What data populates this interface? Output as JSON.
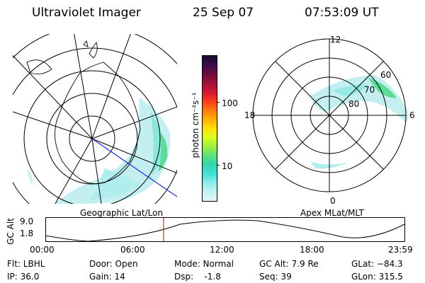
{
  "header": {
    "title": "Ultraviolet Imager",
    "date": "25 Sep 07",
    "time": "07:53:09 UT"
  },
  "colorbar": {
    "unit_label": "photon cm⁻²s⁻¹",
    "tick_labels": [
      "100",
      "10"
    ],
    "colors": [
      "#1b0a2e",
      "#3a0a4e",
      "#6a0a3e",
      "#a0103a",
      "#d01830",
      "#ff3a20",
      "#ff7a10",
      "#ffb000",
      "#ffe000",
      "#d8ff20",
      "#9cf040",
      "#5ce07a",
      "#30d8b0",
      "#40e0d8",
      "#90ecec",
      "#c4f2f2",
      "#e6f6f6"
    ]
  },
  "left_panel": {
    "caption": "Geographic Lat/Lon"
  },
  "right_panel": {
    "caption": "Apex MLat/MLT",
    "mlt_labels": {
      "top": "12",
      "bottom": "0",
      "left": "18",
      "right": "6"
    },
    "mlat_labels": [
      "60",
      "70",
      "80"
    ]
  },
  "altitude_plot": {
    "ylabel": "GC Alt",
    "y_ticks": [
      "9.0",
      "1.8"
    ],
    "x_ticks": [
      "00:00",
      "06:00",
      "12:00",
      "18:00",
      "23:59"
    ],
    "current_time_hours": 7.886
  },
  "info": {
    "flt": "Flt: LBHL",
    "ip": "IP: 36.0",
    "door": "Door: Open",
    "gain": "Gain: 14",
    "mode": "Mode: Normal",
    "dsp": "Dsp:    -1.8",
    "gc_alt": "GC Alt: 7.9 Re",
    "seq": "Seq: 39",
    "glat": "GLat: −84.3",
    "glon": "GLon: 315.5"
  }
}
